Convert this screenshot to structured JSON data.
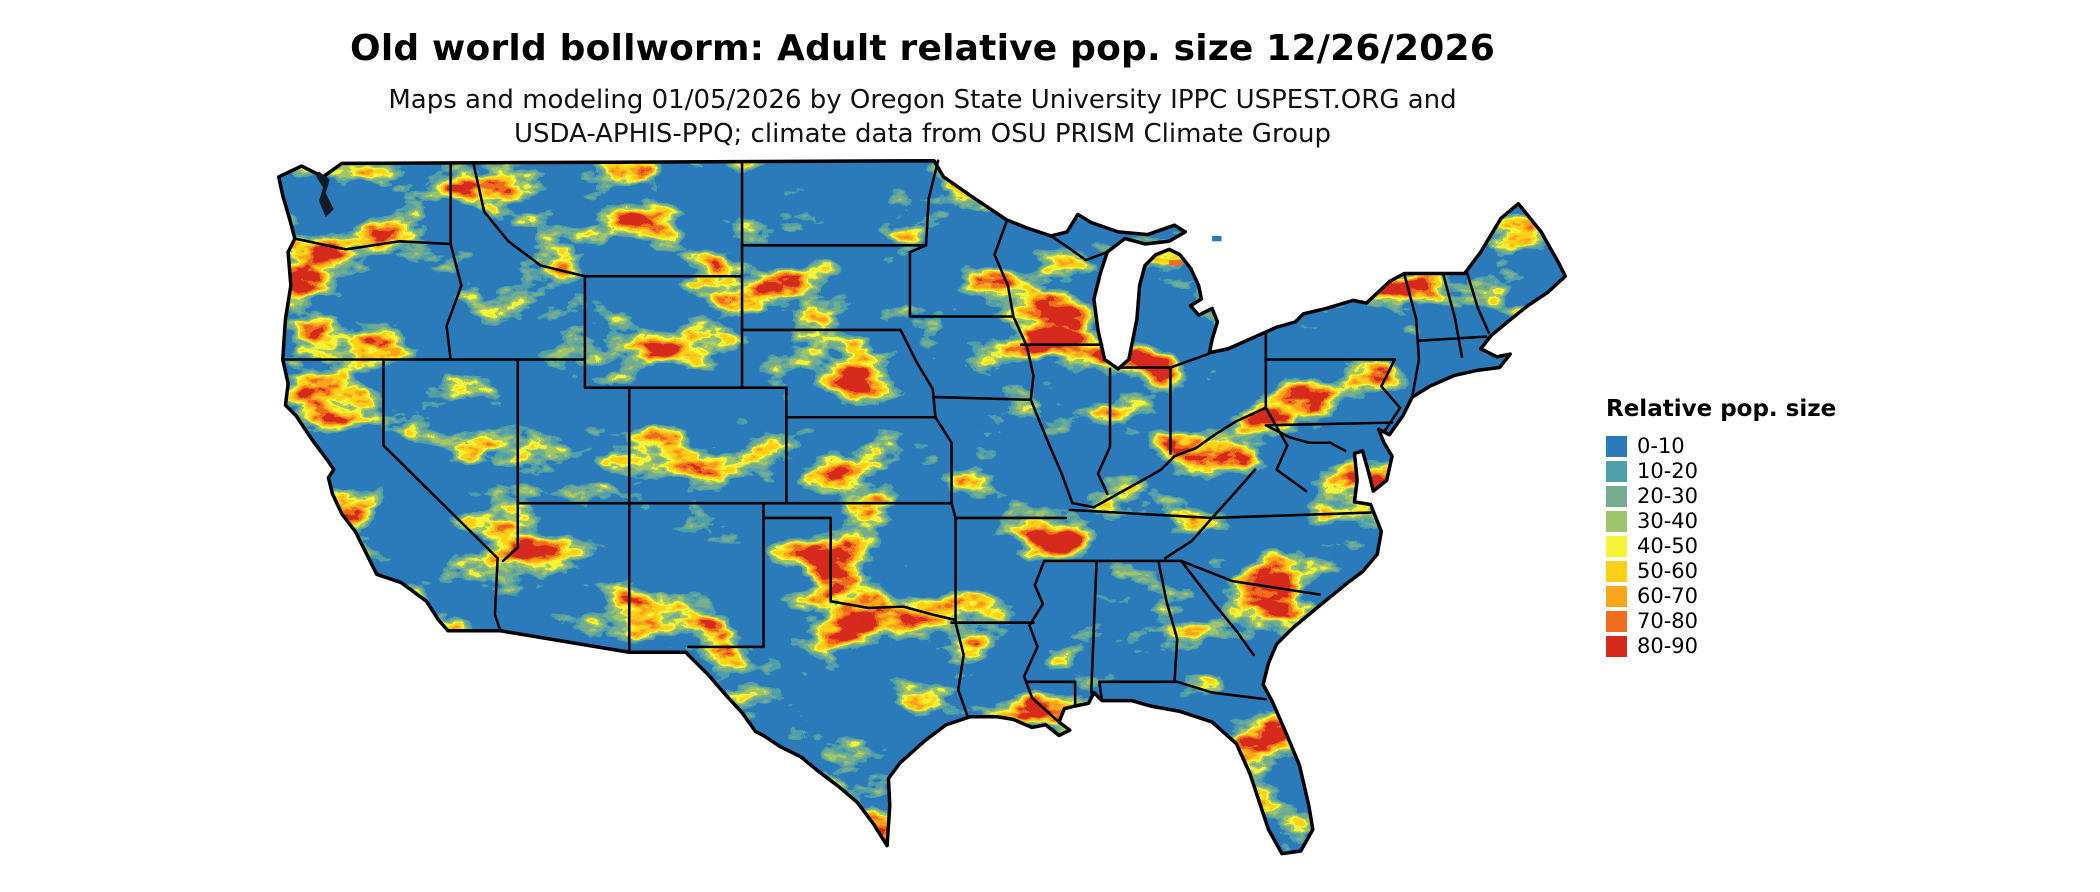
{
  "title": "Old world bollworm: Adult relative pop. size 12/26/2026",
  "subtitle": {
    "line1": "Maps and modeling 01/05/2026 by Oregon State University IPPC USPEST.ORG and",
    "line2": "USDA-APHIS-PPQ; climate data from OSU PRISM Climate Group"
  },
  "legend": {
    "title": "Relative pop. size",
    "items": [
      {
        "label": "0-10",
        "color": "#2b7bba"
      },
      {
        "label": "10-20",
        "color": "#4f9faa"
      },
      {
        "label": "20-30",
        "color": "#74ac8e"
      },
      {
        "label": "30-40",
        "color": "#9fc56a"
      },
      {
        "label": "40-50",
        "color": "#f4f436"
      },
      {
        "label": "50-60",
        "color": "#fdd017"
      },
      {
        "label": "60-70",
        "color": "#fba51c"
      },
      {
        "label": "70-80",
        "color": "#f06d1d"
      },
      {
        "label": "80-90",
        "color": "#d62a1c"
      }
    ]
  },
  "map": {
    "region": "Continental United States",
    "border_color": "#000000",
    "background_color": "#ffffff",
    "dominant_bin": "0-10"
  }
}
